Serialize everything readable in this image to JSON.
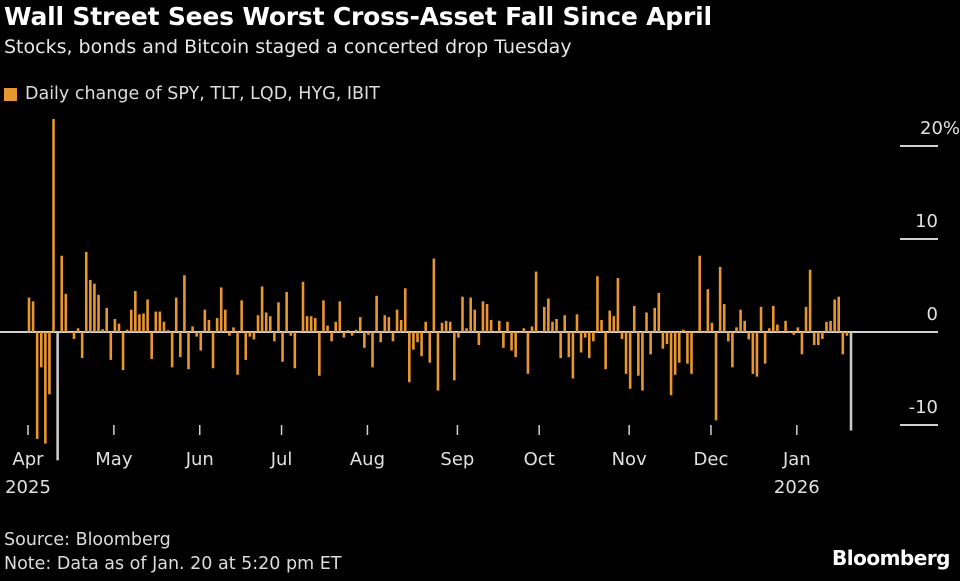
{
  "header": {
    "title": "Wall Street Sees Worst Cross-Asset Fall Since April",
    "subtitle": "Stocks, bonds and Bitcoin staged a concerted drop Tuesday"
  },
  "footer": {
    "source": "Source: Bloomberg",
    "note": "Note: Data as of Jan. 20 at 5:20 pm ET",
    "logo": "Bloomberg"
  },
  "colors": {
    "bar": "#e8962f",
    "highlight": "#c8c8c8",
    "background": "#000000",
    "axis": "#d0d0d0"
  },
  "chart_data": {
    "type": "bar",
    "legend": {
      "label": "Daily change of SPY, TLT, LQD, HYG, IBIT",
      "placement": "top-left"
    },
    "ylabel": "",
    "xlabel": "",
    "y_axis_side": "right",
    "ylim": [
      -12,
      23
    ],
    "y_ticks": [
      {
        "value": 20,
        "label": "20%"
      },
      {
        "value": 10,
        "label": "10"
      },
      {
        "value": 0,
        "label": "0"
      },
      {
        "value": -10,
        "label": "-10"
      }
    ],
    "x_ticks": [
      {
        "index": 0,
        "label": "Apr",
        "year": "2025"
      },
      {
        "index": 21,
        "label": "May"
      },
      {
        "index": 42,
        "label": "Jun"
      },
      {
        "index": 62,
        "label": "Jul"
      },
      {
        "index": 83,
        "label": "Aug"
      },
      {
        "index": 105,
        "label": "Sep"
      },
      {
        "index": 125,
        "label": "Oct"
      },
      {
        "index": 147,
        "label": "Nov"
      },
      {
        "index": 167,
        "label": "Dec"
      },
      {
        "index": 188,
        "label": "Jan",
        "year": "2026"
      }
    ],
    "highlighted_indices": [
      7,
      201
    ],
    "values": [
      3.7,
      3.3,
      -11.5,
      -3.8,
      -12,
      -6.7,
      22.9,
      -13.8,
      8.2,
      4.1,
      0,
      -0.75,
      0.4,
      -2.8,
      8.6,
      5.6,
      5.2,
      4.0,
      0.3,
      2.6,
      -3.0,
      1.4,
      0.9,
      -4.1,
      0.25,
      2.4,
      4.4,
      1.9,
      2.0,
      3.5,
      -2.9,
      2.2,
      2.2,
      1.1,
      0.2,
      -3.8,
      3.7,
      -2.7,
      6.1,
      -4.0,
      0.6,
      -0.5,
      -2.0,
      2.4,
      1.3,
      -3.9,
      1.5,
      4.8,
      2.4,
      -0.4,
      0.5,
      -4.6,
      3.4,
      -3.0,
      -0.5,
      -0.8,
      1.8,
      4.9,
      2.1,
      1.7,
      -1.0,
      3.2,
      -3.2,
      4.3,
      -0.4,
      -3.9,
      0,
      5.4,
      1.7,
      1.7,
      1.5,
      -4.7,
      3.4,
      0.7,
      -1.0,
      1.1,
      3.3,
      -0.6,
      0.2,
      -0.4,
      0.25,
      1.6,
      -1.7,
      -0.3,
      -3.8,
      3.9,
      -1.1,
      1.8,
      1.6,
      -1.0,
      2.4,
      1.3,
      4.7,
      -5.4,
      -1.9,
      -1.1,
      -2.6,
      1.1,
      -3.3,
      7.9,
      -6.3,
      1.0,
      1.2,
      1.1,
      -5.2,
      -0.6,
      3.8,
      0.4,
      3.7,
      2.4,
      -1.4,
      3.3,
      3.0,
      1.3,
      0,
      1.2,
      -1.7,
      1.1,
      -2.0,
      -2.7,
      0,
      0.4,
      -4.5,
      0.6,
      6.5,
      0,
      2.7,
      3.6,
      1.1,
      1.4,
      -2.8,
      1.8,
      -2.7,
      -5.0,
      1.9,
      -2.2,
      -0.6,
      -2.8,
      -1.0,
      6.0,
      1.3,
      -4.0,
      2.3,
      1.7,
      5.8,
      -0.75,
      -4.5,
      -6.1,
      2.8,
      -4.7,
      -6.3,
      2.1,
      -2.4,
      2.6,
      4.2,
      -1.8,
      -1.3,
      -6.8,
      -4.6,
      -3.3,
      0.25,
      -3.4,
      -4.5,
      0,
      8.2,
      0,
      4.6,
      1.0,
      -9.5,
      7.0,
      3.0,
      -1.0,
      -3.8,
      0.5,
      2.4,
      1.2,
      -0.8,
      -4.5,
      -4.8,
      2.7,
      -3.4,
      0.4,
      2.8,
      0.8,
      0,
      1.2,
      0,
      -0.3,
      0.5,
      -2.4,
      2.7,
      6.7,
      -1.4,
      -1.4,
      -0.75,
      1.1,
      1.2,
      3.5,
      3.8,
      -2.4,
      -0.4,
      -10.6
    ]
  }
}
